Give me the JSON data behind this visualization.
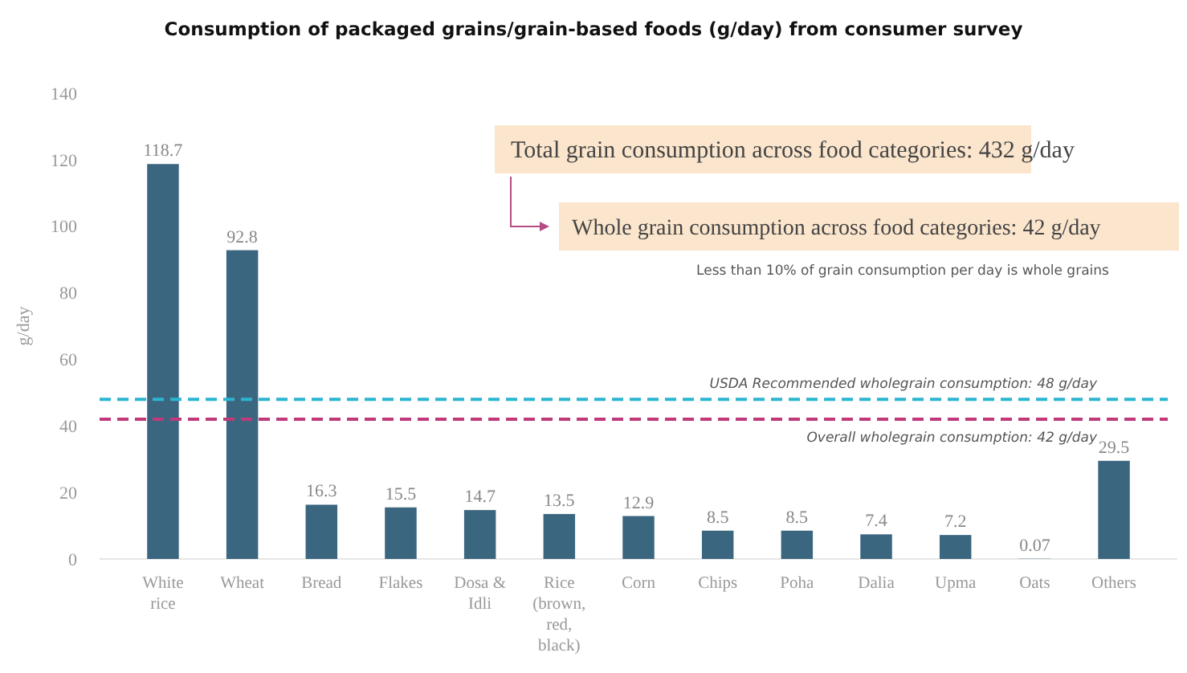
{
  "chart_data": {
    "type": "bar",
    "title": "Consumption of packaged grains/grain-based foods (g/day) from consumer survey",
    "ylabel": "g/day",
    "categories": [
      "White rice",
      "Wheat",
      "Bread",
      "Flakes",
      "Dosa & Idli",
      "Rice (brown, red, black)",
      "Corn",
      "Chips",
      "Poha",
      "Dalia",
      "Upma",
      "Oats",
      "Others"
    ],
    "values": [
      118.7,
      92.8,
      16.3,
      15.5,
      14.7,
      13.5,
      12.9,
      8.5,
      8.5,
      7.4,
      7.2,
      0.07,
      29.5
    ],
    "color": "#3b6680",
    "data_labels": true,
    "ylim": [
      0,
      140
    ],
    "yticks": [
      0,
      20,
      40,
      60,
      80,
      100,
      120,
      140
    ],
    "grid": false,
    "ref_lines": [
      {
        "axis": "y",
        "value": 48,
        "label": "USDA Recommended wholegrain consumption: 48 g/day",
        "color": "#2bb5d0",
        "line_style": "dashed"
      },
      {
        "axis": "y",
        "value": 42,
        "label": "Overall wholegrain consumption: 42 g/day",
        "color": "#c0397a",
        "line_style": "dashed"
      }
    ],
    "annotations": [
      "Total grain consumption across food categories: 432 g/day",
      "Whole grain consumption across food categories: 42 g/day",
      "Less than 10% of grain consumption per day is whole grains"
    ]
  }
}
